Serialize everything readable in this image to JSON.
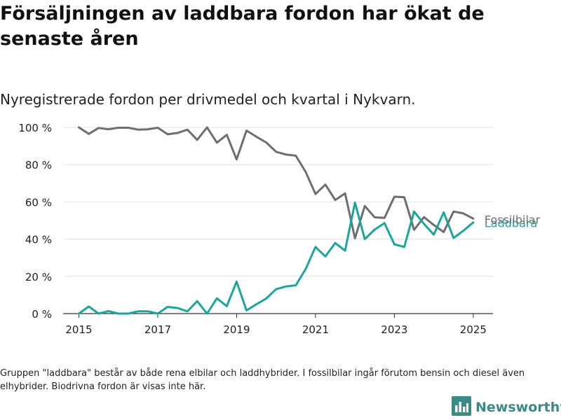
{
  "title": "Försäljningen av laddbara fordon har ökat de senaste åren",
  "subtitle": "Nyregistrerade fordon per drivmedel och kvartal i Nykvarn.",
  "footnote": "Gruppen \"laddbara\" består av både rena elbilar och laddhybrider. I fossilbilar ingår förutom bensin och diesel även elhybrider. Biodrivna fordon är visas inte här.",
  "brand": {
    "name": "Newsworthy",
    "icon": "bar-chart-logo-icon",
    "color": "#3a8a86"
  },
  "chart_data": {
    "type": "line",
    "title": "",
    "xlabel": "",
    "ylabel": "",
    "xlim": [
      2014.6,
      2025.5
    ],
    "ylim": [
      0,
      100
    ],
    "x_ticks": [
      2015,
      2017,
      2019,
      2021,
      2023,
      2025
    ],
    "y_ticks": [
      0,
      20,
      40,
      60,
      80,
      100
    ],
    "y_tick_labels": [
      "0 %",
      "20 %",
      "40 %",
      "60 %",
      "80 %",
      "100 %"
    ],
    "grid": "horizontal",
    "x": [
      2015,
      2015.25,
      2015.5,
      2015.75,
      2016,
      2016.25,
      2016.5,
      2016.75,
      2017,
      2017.25,
      2017.5,
      2017.75,
      2018,
      2018.25,
      2018.5,
      2018.75,
      2019,
      2019.25,
      2019.5,
      2019.75,
      2020,
      2020.25,
      2020.5,
      2020.75,
      2021,
      2021.25,
      2021.5,
      2021.75,
      2022,
      2022.25,
      2022.5,
      2022.75,
      2023,
      2023.25,
      2023.5,
      2023.75,
      2024,
      2024.25,
      2024.5,
      2024.75,
      2025
    ],
    "series": [
      {
        "name": "Fossilbilar",
        "color": "#6e6d72",
        "values": [
          100,
          96.5,
          99.7,
          99,
          99.8,
          99.8,
          98.8,
          99,
          99.8,
          96.3,
          97,
          98.8,
          93.3,
          100,
          91.8,
          96,
          82.8,
          98.3,
          95,
          91.9,
          86.9,
          85.4,
          84.8,
          76.1,
          64.2,
          69.3,
          61,
          64.6,
          40.4,
          57.8,
          51.7,
          51.4,
          62.8,
          62.5,
          45,
          51.8,
          47.6,
          43.8,
          54.8,
          53.8,
          51
        ]
      },
      {
        "name": "Laddbara",
        "color": "#1aa79a",
        "values": [
          0,
          3.8,
          0,
          1.3,
          0,
          0,
          1.2,
          1.2,
          0,
          3.6,
          3,
          1.2,
          6.7,
          0,
          8.2,
          4,
          17.2,
          1.7,
          5,
          8.1,
          13.1,
          14.6,
          15.2,
          23.9,
          35.8,
          30.7,
          37.9,
          33.8,
          59.6,
          40,
          45.1,
          48.6,
          37.2,
          35.8,
          54.8,
          48.2,
          42.4,
          54.4,
          40.6,
          44.5,
          49
        ]
      }
    ]
  }
}
